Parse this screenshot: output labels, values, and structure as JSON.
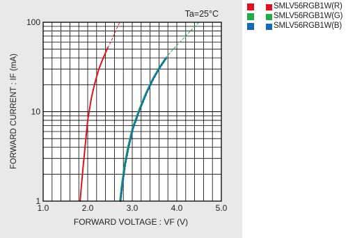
{
  "chart_data": {
    "type": "line",
    "x_scale": "linear",
    "y_scale": "log",
    "xlim": [
      1.0,
      5.0
    ],
    "ylim": [
      1,
      100
    ],
    "x_ticks": [
      "1.0",
      "2.0",
      "3.0",
      "4.0",
      "5.0"
    ],
    "y_ticks": [
      "1",
      "10",
      "100"
    ],
    "xlabel": "FORWARD VOLTAGE : VF (V)",
    "ylabel": "FORWARD CURRENT : IF (mA)",
    "annotation": "Ta=25°C",
    "grid": true,
    "legend_position": "right, outside plot",
    "series": [
      {
        "name": "SMLV56RGB1W(R)",
        "color": "#e0101e",
        "style": "solid",
        "x": [
          1.83,
          1.86,
          1.9,
          1.95,
          2.0,
          2.08,
          2.15,
          2.25,
          2.35,
          2.45
        ],
        "y": [
          1,
          1.5,
          2.5,
          4.5,
          8,
          14,
          20,
          30,
          40,
          52
        ]
      },
      {
        "name": "SMLV56RGB1W(R) extrapolated",
        "color": "#e0101e",
        "style": "dashed",
        "x": [
          2.45,
          2.55,
          2.65,
          2.72
        ],
        "y": [
          52,
          65,
          85,
          100
        ]
      },
      {
        "name": "SMLV56RGB1W(G)",
        "color": "#1eab48",
        "style": "solid",
        "x": [
          2.72,
          2.76,
          2.82,
          2.9,
          3.0,
          3.15,
          3.3,
          3.45,
          3.6,
          3.75
        ],
        "y": [
          1,
          1.5,
          2.5,
          4,
          6.5,
          10.5,
          16,
          23,
          31,
          40
        ]
      },
      {
        "name": "SMLV56RGB1W(G) extrapolated",
        "color": "#1eab48",
        "style": "dashed",
        "x": [
          3.75,
          3.95,
          4.15,
          4.35,
          4.5
        ],
        "y": [
          40,
          52,
          66,
          84,
          100
        ]
      },
      {
        "name": "SMLV56RGB1W(B)",
        "color": "#1469b4",
        "style": "dashed",
        "x": [
          2.74,
          2.78,
          2.84,
          2.92,
          3.02,
          3.17,
          3.32,
          3.47,
          3.62,
          3.77
        ],
        "y": [
          1,
          1.5,
          2.5,
          4,
          6.5,
          10.5,
          16,
          23,
          31,
          40
        ]
      }
    ]
  },
  "legend": {
    "items": [
      {
        "label": "SMLV56RGB1W(R)",
        "color": "#e0101e"
      },
      {
        "label": "SMLV56RGB1W(G)",
        "color": "#1eab48"
      },
      {
        "label": "SMLV56RGB1W(B)",
        "color": "#1469b4"
      }
    ]
  }
}
